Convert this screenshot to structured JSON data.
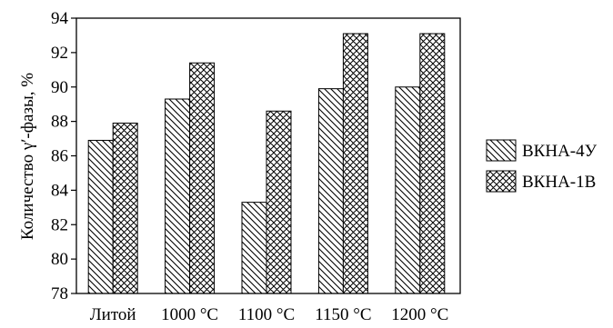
{
  "chart_data": {
    "type": "bar",
    "title": "",
    "xlabel": "",
    "ylabel": "Количество γ′-фазы, %",
    "ylim": [
      78,
      94
    ],
    "yticks": [
      78,
      80,
      82,
      84,
      86,
      88,
      90,
      92,
      94
    ],
    "categories": [
      "Литой",
      "1000 °C",
      "1100 °C",
      "1150 °C",
      "1200 °C"
    ],
    "series": [
      {
        "name": "ВКНА-4У",
        "values": [
          86.9,
          89.3,
          83.3,
          89.9,
          90.0
        ],
        "pattern": "diagonal-hatch"
      },
      {
        "name": "ВКНА-1В",
        "values": [
          87.9,
          91.4,
          88.6,
          93.1,
          93.1
        ],
        "pattern": "cross-hatch"
      }
    ],
    "legend_position": "right",
    "grid": false
  }
}
